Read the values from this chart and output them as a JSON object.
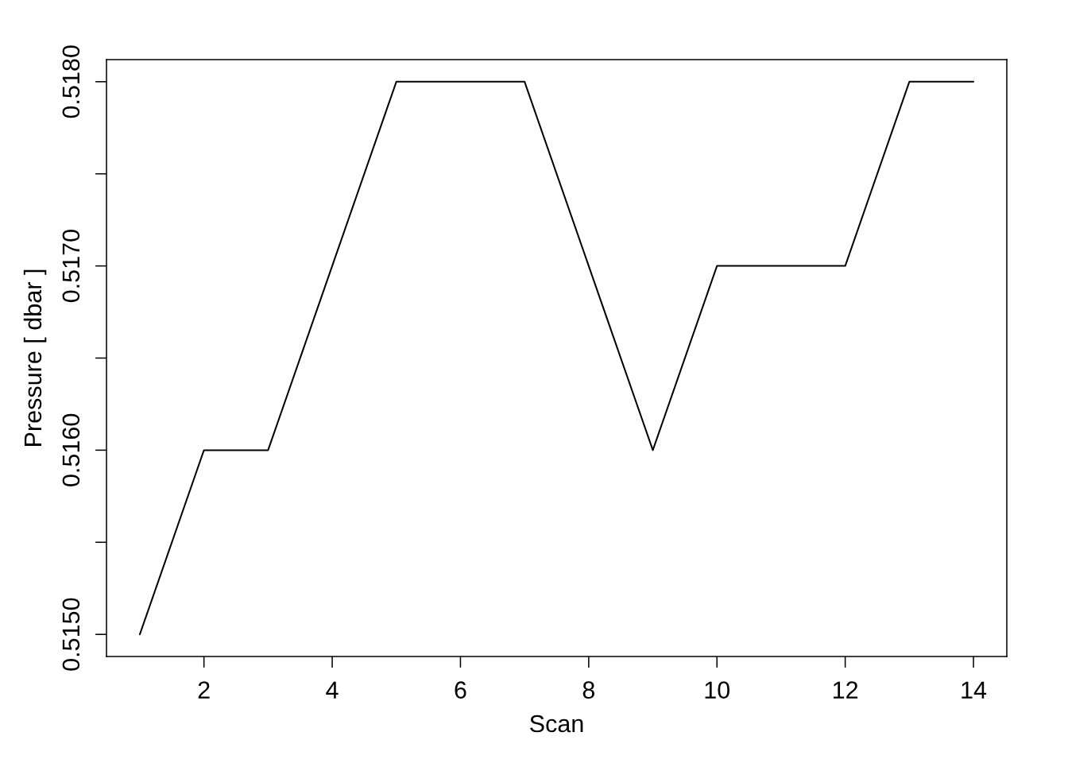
{
  "chart_data": {
    "type": "line",
    "xlabel": "Scan",
    "ylabel": "Pressure [ dbar ]",
    "x": [
      1,
      2,
      3,
      4,
      5,
      6,
      7,
      8,
      9,
      10,
      11,
      12,
      13,
      14
    ],
    "series": [
      {
        "color": "#000000",
        "values": [
          0.515,
          0.516,
          0.516,
          0.517,
          0.518,
          0.518,
          0.518,
          0.517,
          0.516,
          0.517,
          0.517,
          0.517,
          0.518,
          0.518
        ]
      }
    ],
    "xlim": [
      0.48,
      14.52
    ],
    "ylim": [
      0.51488,
      0.51812
    ],
    "xticks": [
      2,
      4,
      6,
      8,
      10,
      12,
      14
    ],
    "yticks": [
      {
        "value": 0.515,
        "label": "0.5150"
      },
      {
        "value": 0.5155,
        "label": null
      },
      {
        "value": 0.516,
        "label": "0.5160"
      },
      {
        "value": 0.5165,
        "label": null
      },
      {
        "value": 0.517,
        "label": "0.5170"
      },
      {
        "value": 0.5175,
        "label": null
      },
      {
        "value": 0.518,
        "label": "0.5180"
      }
    ],
    "marker": "none",
    "line_style": "solid"
  }
}
